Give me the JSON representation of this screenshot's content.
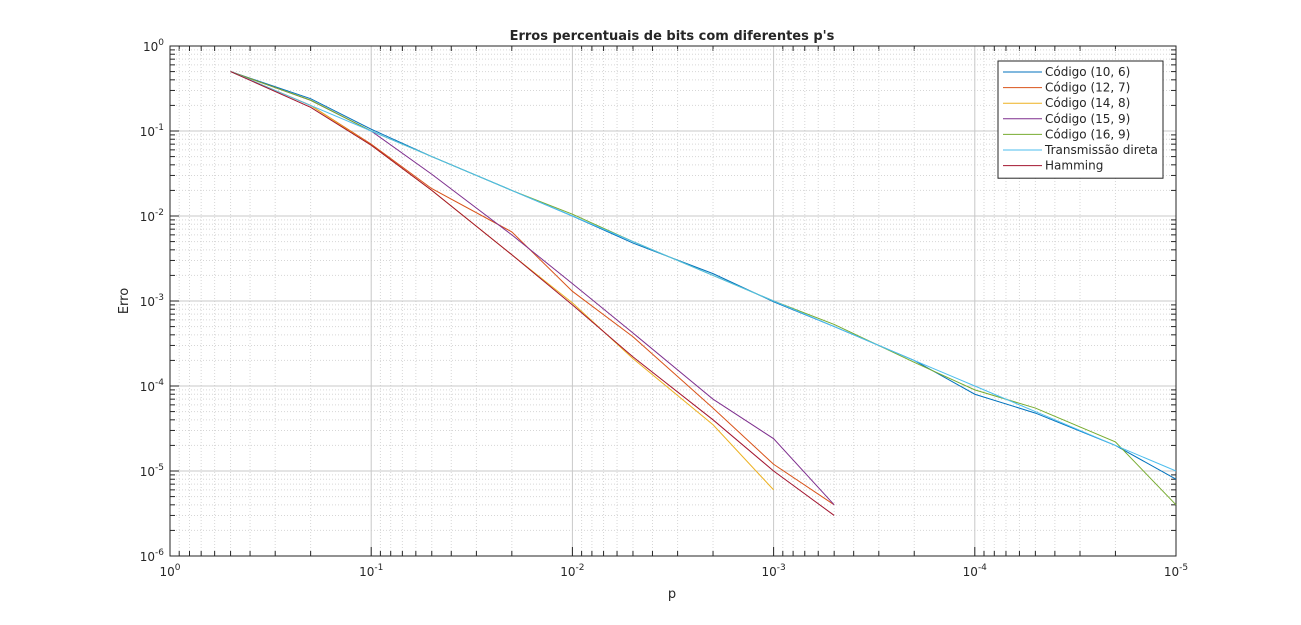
{
  "chart_data": {
    "type": "line",
    "title": "Erros percentuais de bits com diferentes p's",
    "xlabel": "p",
    "ylabel": "Erro",
    "xscale": "log",
    "yscale": "log",
    "grid": true,
    "minor_grid": true,
    "legend": "upper right",
    "xlim": [
      1,
      1e-05
    ],
    "ylim": [
      1e-06,
      1
    ],
    "xticks": [
      {
        "value": 1,
        "label": "10^0"
      },
      {
        "value": 0.1,
        "label": "10^-1"
      },
      {
        "value": 0.01,
        "label": "10^-2"
      },
      {
        "value": 0.001,
        "label": "10^-3"
      },
      {
        "value": 0.0001,
        "label": "10^-4"
      },
      {
        "value": 1e-05,
        "label": "10^-5"
      }
    ],
    "yticks": [
      {
        "value": 1e-06,
        "label": "10^-6"
      },
      {
        "value": 1e-05,
        "label": "10^-5"
      },
      {
        "value": 0.0001,
        "label": "10^-4"
      },
      {
        "value": 0.001,
        "label": "10^-3"
      },
      {
        "value": 0.01,
        "label": "10^-2"
      },
      {
        "value": 0.1,
        "label": "10^-1"
      },
      {
        "value": 1,
        "label": "10^0"
      }
    ],
    "x": [
      0.5,
      0.2,
      0.1,
      0.05,
      0.02,
      0.01,
      0.005,
      0.002,
      0.001,
      0.0005,
      0.0002,
      0.0001,
      5e-05,
      2e-05,
      1e-05
    ],
    "series": [
      {
        "name": "Código (10, 6)",
        "color": "#0072BD",
        "values": [
          0.5,
          0.24,
          0.105,
          0.05,
          0.02,
          0.01,
          0.0048,
          0.0021,
          0.00098,
          0.0005,
          0.0002,
          8e-05,
          4.8e-05,
          2e-05,
          8e-06
        ]
      },
      {
        "name": "Código (12, 7)",
        "color": "#D95319",
        "values": [
          0.5,
          0.2,
          0.07,
          0.021,
          0.0065,
          0.0013,
          0.00038,
          5.5e-05,
          1.2e-05,
          4e-06,
          null,
          null,
          null,
          null,
          null
        ]
      },
      {
        "name": "Código (14, 8)",
        "color": "#EDB120",
        "values": [
          0.5,
          0.2,
          0.068,
          0.02,
          0.0035,
          0.00095,
          0.00021,
          3.5e-05,
          6e-06,
          null,
          null,
          null,
          null,
          null,
          null
        ]
      },
      {
        "name": "Código (15, 9)",
        "color": "#7E2F8E",
        "values": [
          0.5,
          0.23,
          0.1,
          0.031,
          0.006,
          0.0016,
          0.00042,
          7e-05,
          2.4e-05,
          4e-06,
          null,
          null,
          null,
          null,
          null
        ]
      },
      {
        "name": "Código (16, 9)",
        "color": "#77AC30",
        "values": [
          0.5,
          0.23,
          0.1,
          0.05,
          0.02,
          0.0105,
          0.005,
          0.002,
          0.001,
          0.00053,
          0.00019,
          9e-05,
          5.5e-05,
          2.2e-05,
          4e-06
        ]
      },
      {
        "name": "Transmissão direta",
        "color": "#4DBEEE",
        "values": [
          0.5,
          0.2,
          0.1,
          0.05,
          0.02,
          0.01,
          0.005,
          0.002,
          0.001,
          0.0005,
          0.0002,
          0.0001,
          5e-05,
          2e-05,
          1e-05
        ]
      },
      {
        "name": "Hamming",
        "color": "#A2142F",
        "values": [
          0.5,
          0.19,
          0.068,
          0.02,
          0.0035,
          0.0009,
          0.00022,
          4e-05,
          1e-05,
          3e-06,
          null,
          null,
          null,
          null,
          null
        ]
      }
    ]
  }
}
